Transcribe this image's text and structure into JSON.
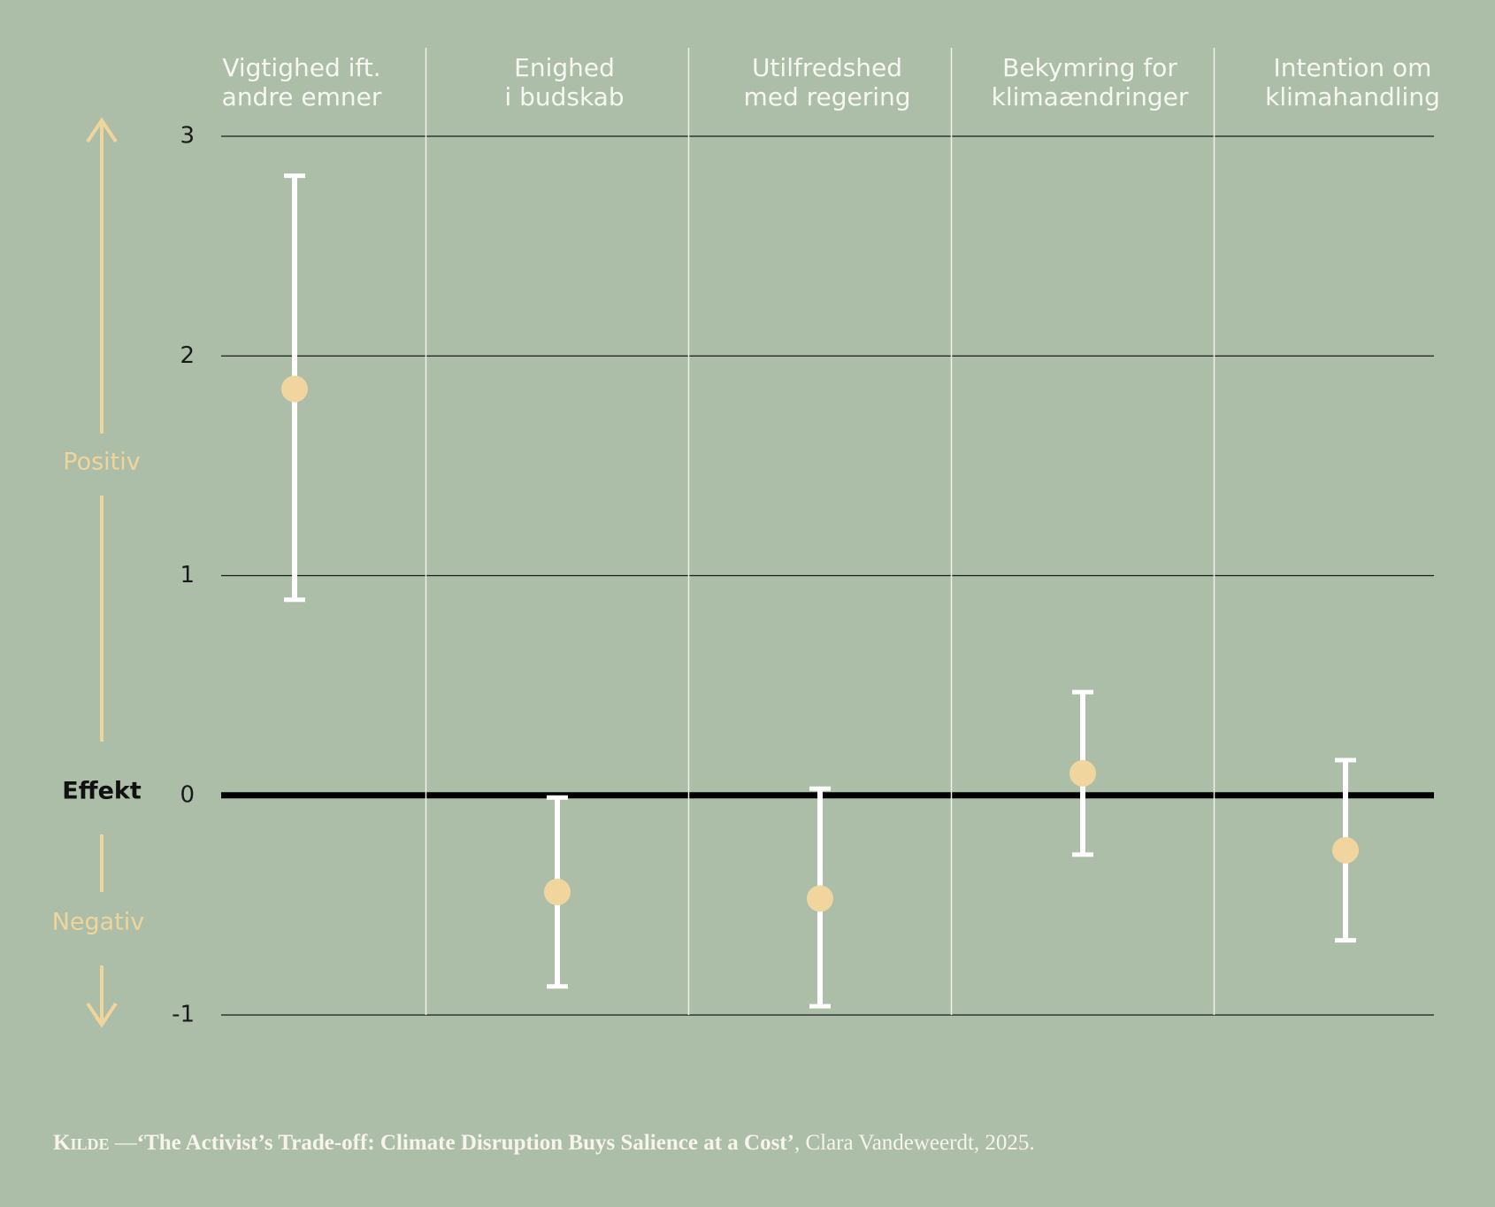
{
  "chart_data": {
    "type": "errorbar",
    "categories": [
      [
        "Vigtighed ift.",
        "andre emner"
      ],
      [
        "Enighed",
        "i budskab"
      ],
      [
        "Utilfredshed",
        "med regering"
      ],
      [
        "Bekymring for",
        "klimaændringer"
      ],
      [
        "Intention om",
        "klimahandling"
      ]
    ],
    "values": [
      1.85,
      -0.44,
      -0.47,
      0.1,
      -0.25
    ],
    "lower": [
      0.89,
      -0.87,
      -0.96,
      -0.27,
      -0.66
    ],
    "upper": [
      2.82,
      -0.01,
      0.03,
      0.47,
      0.16
    ],
    "color": "#f0d69e",
    "ylim": [
      -1,
      3
    ],
    "yticks": [
      -1,
      0,
      1,
      2,
      3
    ],
    "grid": true,
    "zero_line": true,
    "y_label": "Effekt",
    "positive_label": "Positiv",
    "negative_label": "Negativ",
    "source": {
      "label": "Kilde",
      "separator": "—",
      "title": "‘The Activist’s Trade-off: Climate Disruption Buys Salience at a Cost’",
      "rest": ", Clara Vandeweerdt, 2025."
    }
  }
}
